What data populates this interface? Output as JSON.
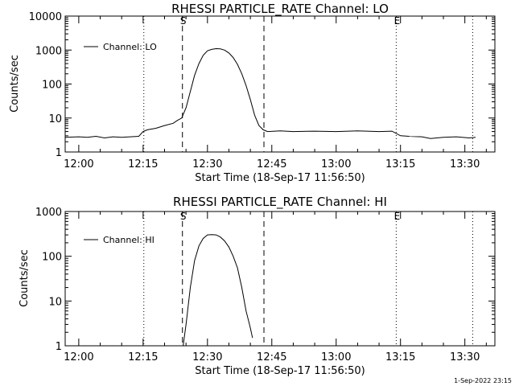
{
  "chart_data": [
    {
      "type": "line",
      "title": "RHESSI PARTICLE_RATE Channel: LO",
      "xlabel": "Start Time (18-Sep-17 11:56:50)",
      "ylabel": "Counts/sec",
      "y_scale": "log",
      "ylim": [
        1,
        10000
      ],
      "yticks": [
        1,
        10,
        100,
        1000,
        10000
      ],
      "ytick_labels": [
        "1",
        "10",
        "100",
        "1000",
        "10000"
      ],
      "xlim": [
        "11:56:50",
        "13:37:00"
      ],
      "xticks": [
        "12:00",
        "12:15",
        "12:30",
        "12:45",
        "13:00",
        "13:15",
        "13:30"
      ],
      "legend": {
        "position": "top-left",
        "entries": [
          "Channel: LO"
        ]
      },
      "markers": [
        {
          "label": "S",
          "time": "12:24:10",
          "style": "dashed"
        },
        {
          "label": "",
          "time": "12:43:10",
          "style": "dashed"
        },
        {
          "label": "",
          "time": "12:15:10",
          "style": "dotted"
        },
        {
          "label": "E",
          "time": "13:14:00",
          "style": "dotted"
        },
        {
          "label": "",
          "time": "13:31:50",
          "style": "dotted"
        }
      ],
      "series": [
        {
          "name": "Channel: LO",
          "x": [
            "11:56:50",
            "12:00:00",
            "12:02:00",
            "12:04:00",
            "12:06:00",
            "12:08:00",
            "12:10:00",
            "12:12:00",
            "12:14:00",
            "12:15:00",
            "12:16:00",
            "12:18:00",
            "12:20:00",
            "12:22:00",
            "12:23:00",
            "12:24:00",
            "12:25:00",
            "12:26:00",
            "12:27:00",
            "12:28:00",
            "12:29:00",
            "12:30:00",
            "12:31:00",
            "12:32:00",
            "12:33:00",
            "12:34:00",
            "12:35:00",
            "12:36:00",
            "12:37:00",
            "12:38:00",
            "12:39:00",
            "12:40:00",
            "12:41:00",
            "12:42:00",
            "12:43:00",
            "12:44:00",
            "12:47:00",
            "12:50:00",
            "12:55:00",
            "13:00:00",
            "13:05:00",
            "13:10:00",
            "13:13:00",
            "13:15:00",
            "13:17:00",
            "13:20:00",
            "13:22:00",
            "13:25:00",
            "13:28:00",
            "13:31:00",
            "13:32:30"
          ],
          "y": [
            2.7,
            2.8,
            2.7,
            2.9,
            2.6,
            2.8,
            2.7,
            2.8,
            2.9,
            4.0,
            4.5,
            5.0,
            6.0,
            7.0,
            8.5,
            10,
            20,
            60,
            180,
            400,
            700,
            950,
            1050,
            1100,
            1080,
            1000,
            820,
            600,
            380,
            200,
            90,
            35,
            12,
            6,
            4.5,
            4.0,
            4.2,
            4.0,
            4.1,
            4.0,
            4.2,
            4.0,
            4.1,
            3.0,
            2.9,
            2.8,
            2.5,
            2.7,
            2.8,
            2.6,
            2.7
          ]
        }
      ]
    },
    {
      "type": "line",
      "title": "RHESSI PARTICLE_RATE Channel: HI",
      "xlabel": "Start Time (18-Sep-17 11:56:50)",
      "ylabel": "Counts/sec",
      "y_scale": "log",
      "ylim": [
        1,
        1000
      ],
      "yticks": [
        1,
        10,
        100,
        1000
      ],
      "ytick_labels": [
        "1",
        "10",
        "100",
        "1000"
      ],
      "xlim": [
        "11:56:50",
        "13:37:00"
      ],
      "xticks": [
        "12:00",
        "12:15",
        "12:30",
        "12:45",
        "13:00",
        "13:15",
        "13:30"
      ],
      "legend": {
        "position": "top-left",
        "entries": [
          "Channel: HI"
        ]
      },
      "markers": [
        {
          "label": "S",
          "time": "12:24:10",
          "style": "dashed"
        },
        {
          "label": "",
          "time": "12:43:10",
          "style": "dashed"
        },
        {
          "label": "",
          "time": "12:15:10",
          "style": "dotted"
        },
        {
          "label": "E",
          "time": "13:14:00",
          "style": "dotted"
        },
        {
          "label": "",
          "time": "13:31:50",
          "style": "dotted"
        }
      ],
      "series": [
        {
          "name": "Channel: HI",
          "x": [
            "12:24:20",
            "12:25:00",
            "12:26:00",
            "12:27:00",
            "12:28:00",
            "12:29:00",
            "12:30:00",
            "12:31:00",
            "12:32:00",
            "12:33:00",
            "12:34:00",
            "12:35:00",
            "12:36:00",
            "12:37:00",
            "12:38:00",
            "12:39:00",
            "12:40:00",
            "12:40:30"
          ],
          "y": [
            1,
            3,
            20,
            80,
            170,
            250,
            300,
            305,
            300,
            270,
            220,
            160,
            100,
            55,
            20,
            6,
            2.5,
            1.5
          ]
        }
      ]
    }
  ],
  "footer": {
    "stamp": "1-Sep-2022 23:15"
  }
}
